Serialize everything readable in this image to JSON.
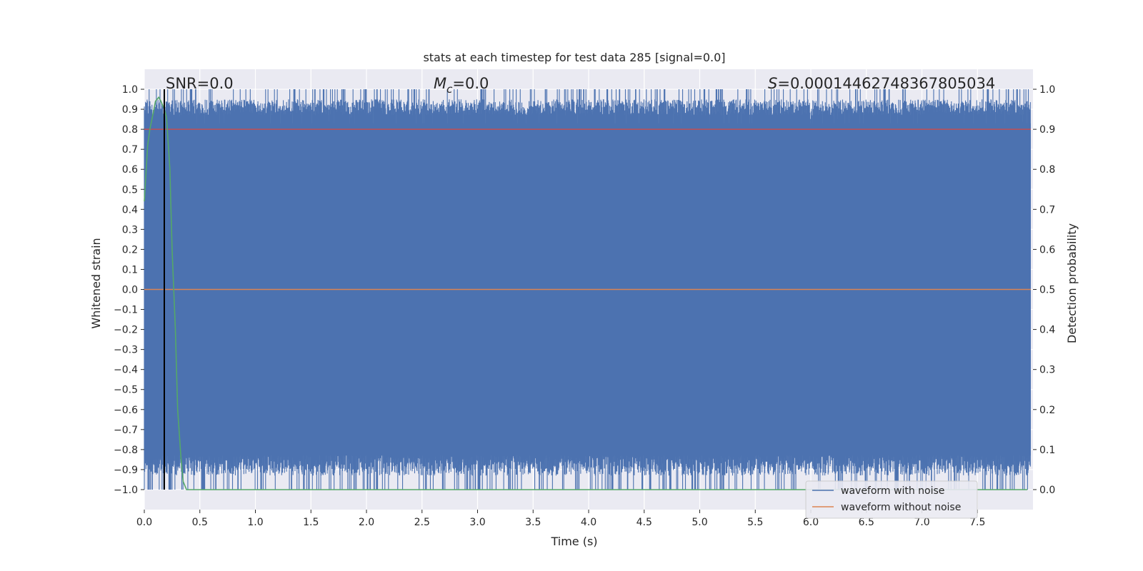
{
  "chart_data": {
    "type": "line",
    "title": "stats at each timestep for test data 285 [signal=0.0]",
    "xlabel": "Time (s)",
    "ylabel": "Whitened strain",
    "y2label": "Detection probability",
    "xlim": [
      0.0,
      8.0
    ],
    "ylim": [
      -1.1,
      1.1
    ],
    "y2lim": [
      -0.05,
      1.05
    ],
    "x_ticks": [
      0.0,
      0.5,
      1.0,
      1.5,
      2.0,
      2.5,
      3.0,
      3.5,
      4.0,
      4.5,
      5.0,
      5.5,
      6.0,
      6.5,
      7.0,
      7.5
    ],
    "x_tick_labels": [
      "0.0",
      "0.5",
      "1.0",
      "1.5",
      "2.0",
      "2.5",
      "3.0",
      "3.5",
      "4.0",
      "4.5",
      "5.0",
      "5.5",
      "6.0",
      "6.5",
      "7.0",
      "7.5"
    ],
    "y_ticks": [
      1.0,
      0.9,
      0.8,
      0.7,
      0.6,
      0.5,
      0.4,
      0.3,
      0.2,
      0.1,
      0.0,
      -0.1,
      -0.2,
      -0.3,
      -0.4,
      -0.5,
      -0.6,
      -0.7,
      -0.8,
      -0.9,
      -1.0
    ],
    "y_tick_labels": [
      "1.0",
      "0.9",
      "0.8",
      "0.7",
      "0.6",
      "0.5",
      "0.4",
      "0.3",
      "0.2",
      "0.1",
      "0.0",
      "−0.1",
      "−0.2",
      "−0.3",
      "−0.4",
      "−0.5",
      "−0.6",
      "−0.7",
      "−0.8",
      "−0.9",
      "−1.0"
    ],
    "y2_ticks": [
      1.0,
      0.9,
      0.8,
      0.7,
      0.6,
      0.5,
      0.4,
      0.3,
      0.2,
      0.1,
      0.0
    ],
    "y2_tick_labels": [
      "1.0",
      "0.9",
      "0.8",
      "0.7",
      "0.6",
      "0.5",
      "0.4",
      "0.3",
      "0.2",
      "0.1",
      "0.0"
    ],
    "grid": true,
    "legend_position": "lower-right",
    "annotations": {
      "snr": "SNR=0.0",
      "mc_symbol": "M",
      "mc_sub": "c",
      "mc_value": "=0.0",
      "s_symbol": "S",
      "s_value": "=0.00014462748367805034"
    },
    "colors": {
      "noise": "#4c72b0",
      "clean": "#dd8452",
      "probability": "#55a868",
      "threshold": "#c44e52",
      "marker": "#000000",
      "axes_bg": "#eaeaf2"
    },
    "series": [
      {
        "name": "waveform with noise",
        "axis": "left",
        "description_type": "dense whitened strain",
        "approx_envelope": {
          "upper_typical": 0.95,
          "lower_typical": -0.93,
          "max": 1.0,
          "min": -1.0
        }
      },
      {
        "name": "waveform without noise",
        "axis": "left",
        "values_constant": 0.0
      },
      {
        "axis": "right",
        "x": [
          0.0,
          0.03,
          0.05,
          0.08,
          0.1,
          0.13,
          0.15,
          0.18,
          0.2,
          0.23,
          0.25,
          0.28,
          0.3,
          0.33,
          0.35,
          0.38,
          0.5,
          1.0,
          2.0,
          3.0,
          4.0,
          5.0,
          6.0,
          7.0,
          7.95
        ],
        "y": [
          0.72,
          0.86,
          0.9,
          0.94,
          0.97,
          0.98,
          0.97,
          0.95,
          0.93,
          0.8,
          0.6,
          0.4,
          0.2,
          0.08,
          0.02,
          0.0,
          0.0,
          0.0,
          0.0,
          0.0,
          0.0,
          0.0,
          0.0,
          0.0,
          0.0
        ]
      },
      {
        "axis": "right",
        "values_constant": 0.9
      }
    ],
    "vertical_marker_x": 0.18
  }
}
